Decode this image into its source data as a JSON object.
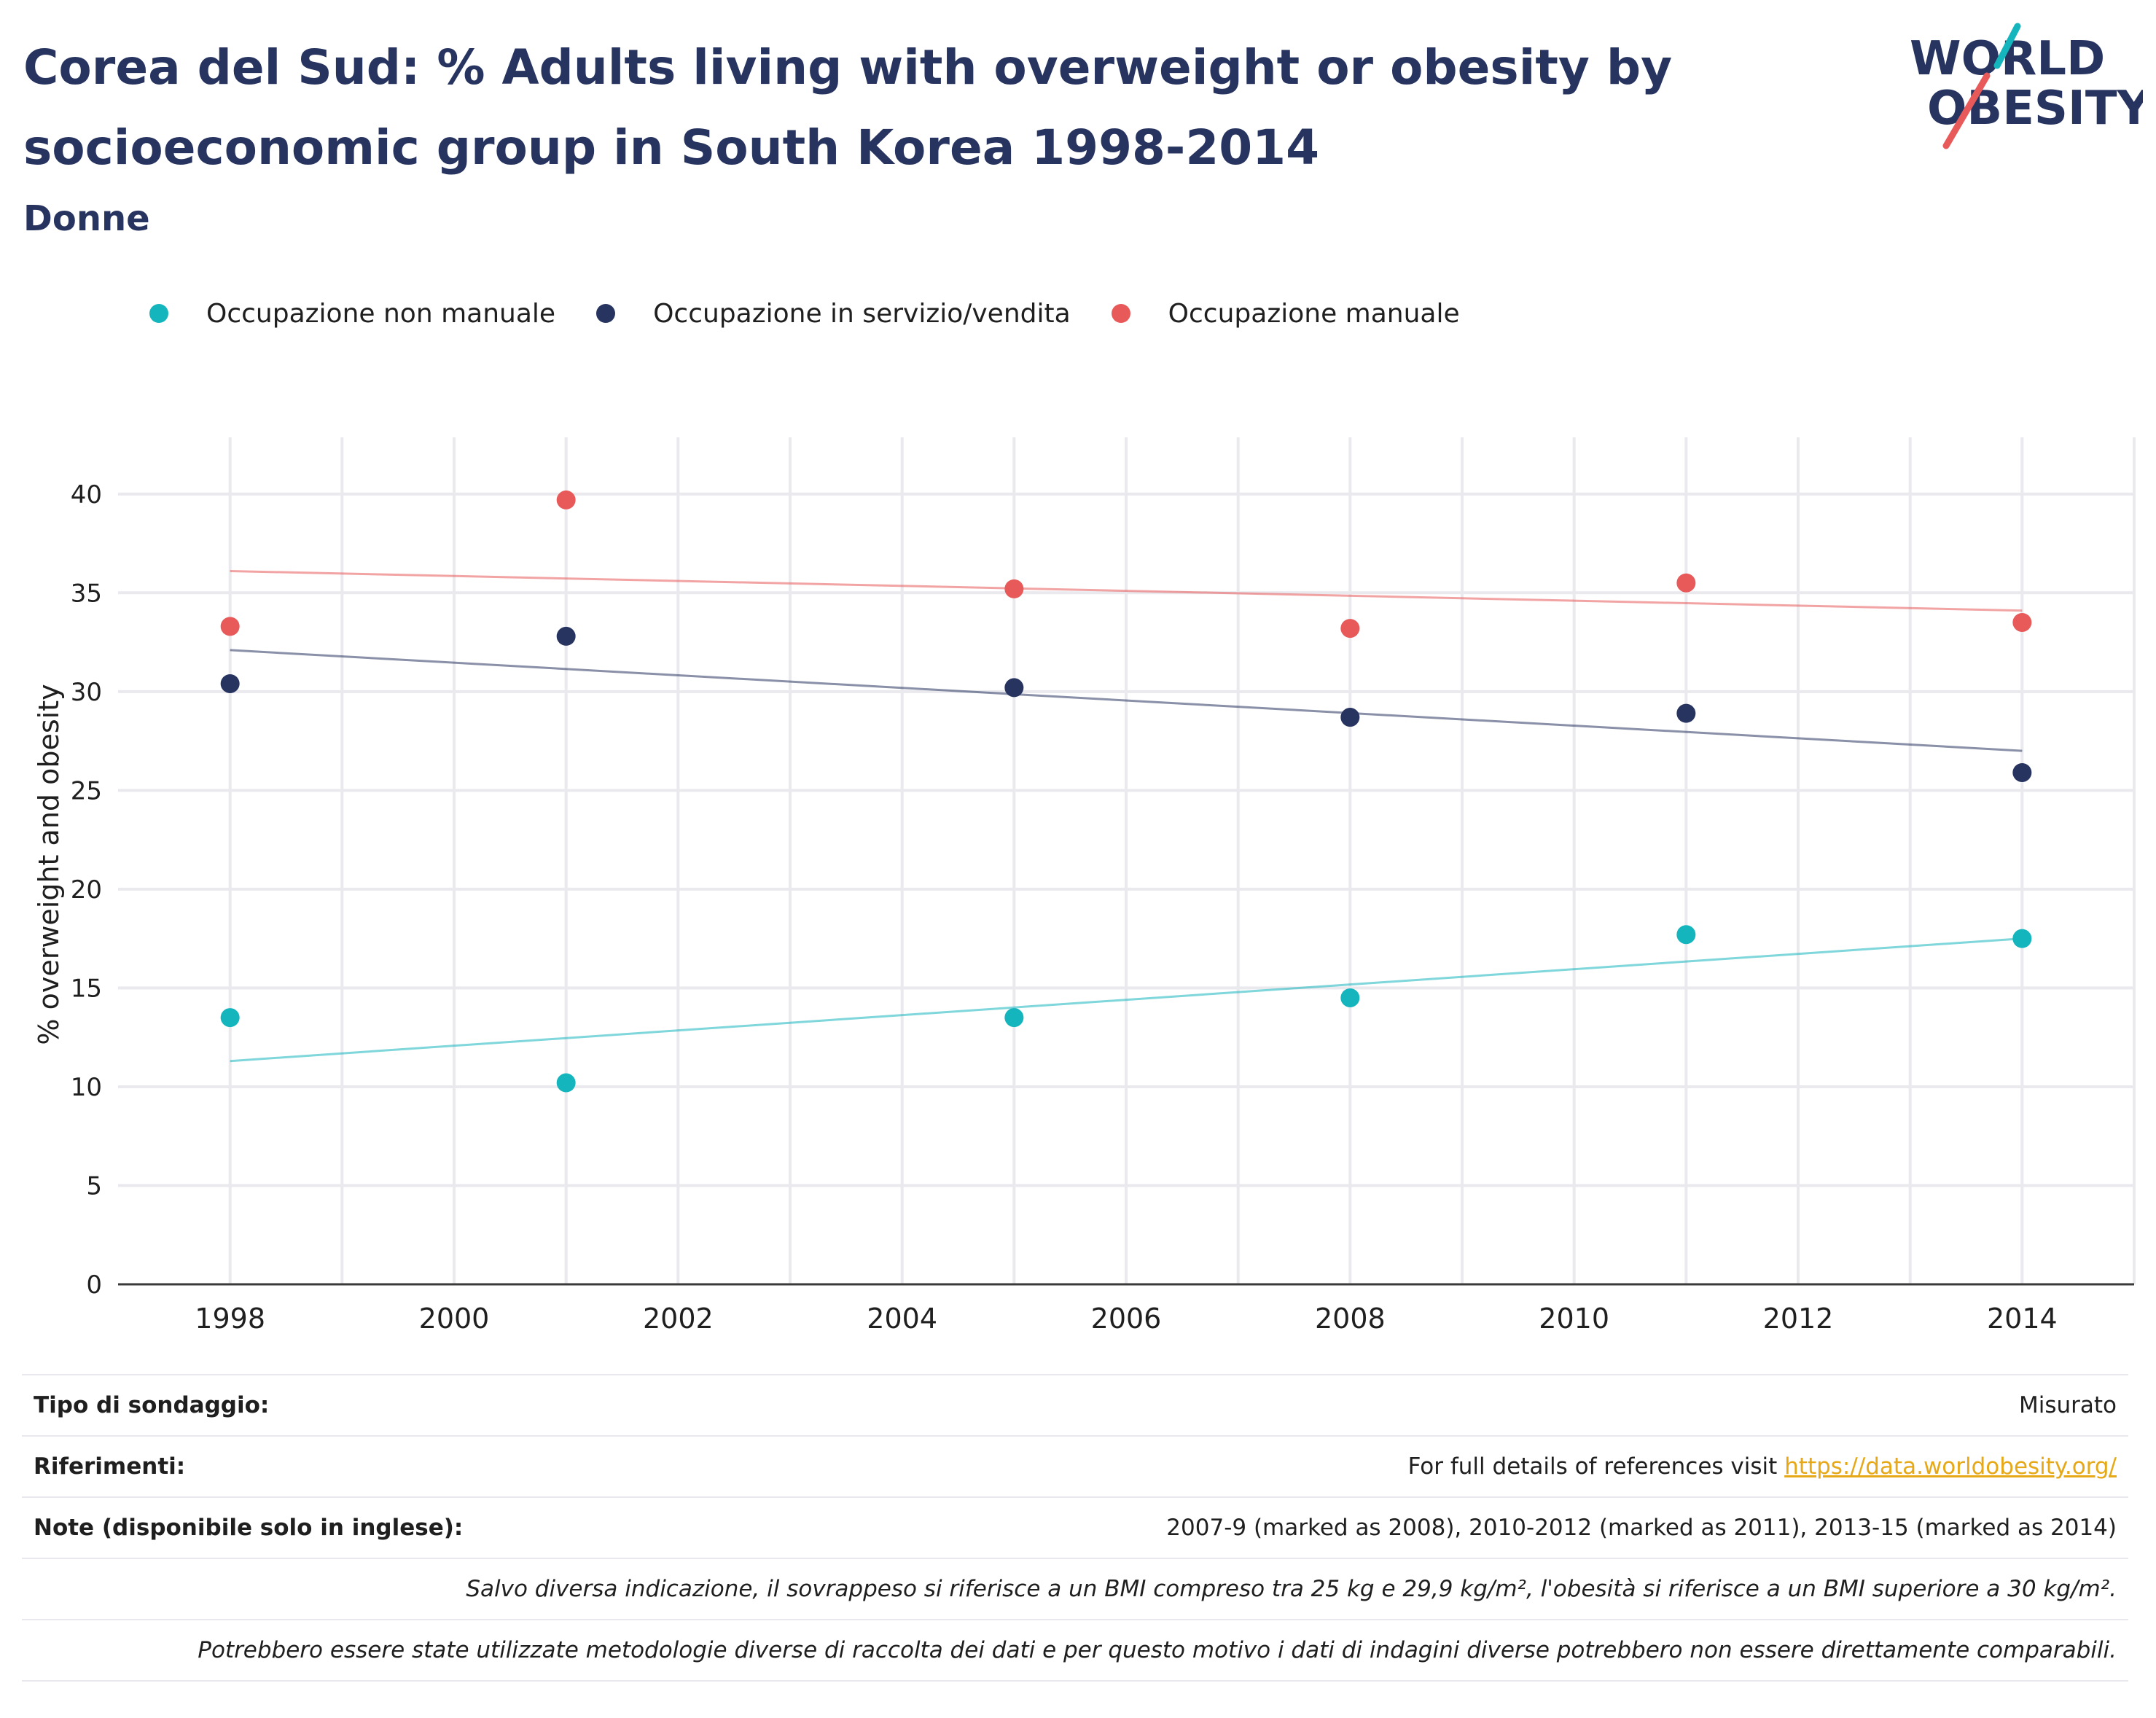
{
  "header": {
    "title_line1": "Corea del Sud: % Adults living with overweight or obesity by",
    "title_line2": "socioeconomic group in South Korea 1998-2014",
    "subtitle": "Donne",
    "logo_word1": "WORLD",
    "logo_word2": "OBESITY"
  },
  "colors": {
    "non_manual": "#15b5bd",
    "service_sales": "#283460",
    "manual": "#e85a5a",
    "axis_text": "#1f1f1f",
    "grid": "#e9e9ee",
    "link": "#e6a817"
  },
  "legend": [
    {
      "label": "Occupazione non manuale",
      "color": "#15b5bd"
    },
    {
      "label": "Occupazione in servizio/vendita",
      "color": "#283460"
    },
    {
      "label": "Occupazione manuale",
      "color": "#e85a5a"
    }
  ],
  "chart_data": {
    "type": "scatter",
    "title": "Corea del Sud: % Adults living with overweight or obesity by socioeconomic group in South Korea 1998-2014",
    "subtitle": "Donne",
    "xlabel": "",
    "ylabel": "% overweight and obesity",
    "xlim": [
      1997,
      2015
    ],
    "ylim": [
      0,
      42.5
    ],
    "x_ticks": [
      1998,
      2000,
      2002,
      2004,
      2006,
      2008,
      2010,
      2012,
      2014
    ],
    "y_ticks": [
      0,
      5,
      10,
      15,
      20,
      25,
      30,
      35,
      40
    ],
    "grid": true,
    "legend_position": "top-left",
    "x": [
      1998,
      2001,
      2005,
      2008,
      2011,
      2014
    ],
    "series": [
      {
        "name": "Occupazione non manuale",
        "color": "#15b5bd",
        "values": [
          13.5,
          10.2,
          13.5,
          14.5,
          17.7,
          17.5
        ],
        "trend": [
          11.3,
          17.5
        ]
      },
      {
        "name": "Occupazione in servizio/vendita",
        "color": "#283460",
        "values": [
          30.4,
          32.8,
          30.2,
          28.7,
          28.9,
          25.9
        ],
        "trend": [
          32.1,
          27.0
        ]
      },
      {
        "name": "Occupazione manuale",
        "color": "#e85a5a",
        "values": [
          33.3,
          39.7,
          35.2,
          33.2,
          35.5,
          33.5
        ],
        "trend": [
          36.1,
          34.1
        ]
      }
    ]
  },
  "footer": {
    "survey_label": "Tipo di sondaggio:",
    "survey_value": "Misurato",
    "refs_label": "Riferimenti:",
    "refs_text": "For full details of references visit ",
    "refs_link": "https://data.worldobesity.org/",
    "notes_label": "Note (disponibile solo in inglese):",
    "notes_value": "2007-9 (marked as 2008), 2010-2012 (marked as 2011), 2013-15 (marked as 2014)",
    "bmi_note": "Salvo diversa indicazione, il sovrappeso si riferisce a un BMI compreso tra 25 kg e 29,9 kg/m², l'obesità si riferisce a un BMI superiore a 30 kg/m².",
    "method_note": "Potrebbero essere state utilizzate metodologie diverse di raccolta dei dati e per questo motivo i dati di indagini diverse potrebbero non essere direttamente comparabili."
  }
}
